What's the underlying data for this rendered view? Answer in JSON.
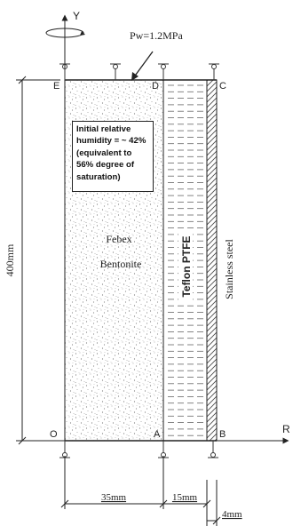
{
  "axes": {
    "y_label": "Y",
    "r_label": "R"
  },
  "load": {
    "pressure_label": "Pw=1.2MPa"
  },
  "points": {
    "E": "E",
    "D": "D",
    "C": "C",
    "O": "O",
    "A": "A",
    "B": "B"
  },
  "note": {
    "text": "Initial relative humidity = ~ 42% (equivalent to 56% degree of saturation)"
  },
  "materials": {
    "bentonite_line1": "Febex",
    "bentonite_line2": "Bentonite",
    "teflon": "Teflon PTFE",
    "steel": "Stainless steel"
  },
  "dimensions": {
    "height": "400mm",
    "width_bentonite": "35mm",
    "width_teflon": "15mm",
    "width_steel": "4mm"
  }
}
